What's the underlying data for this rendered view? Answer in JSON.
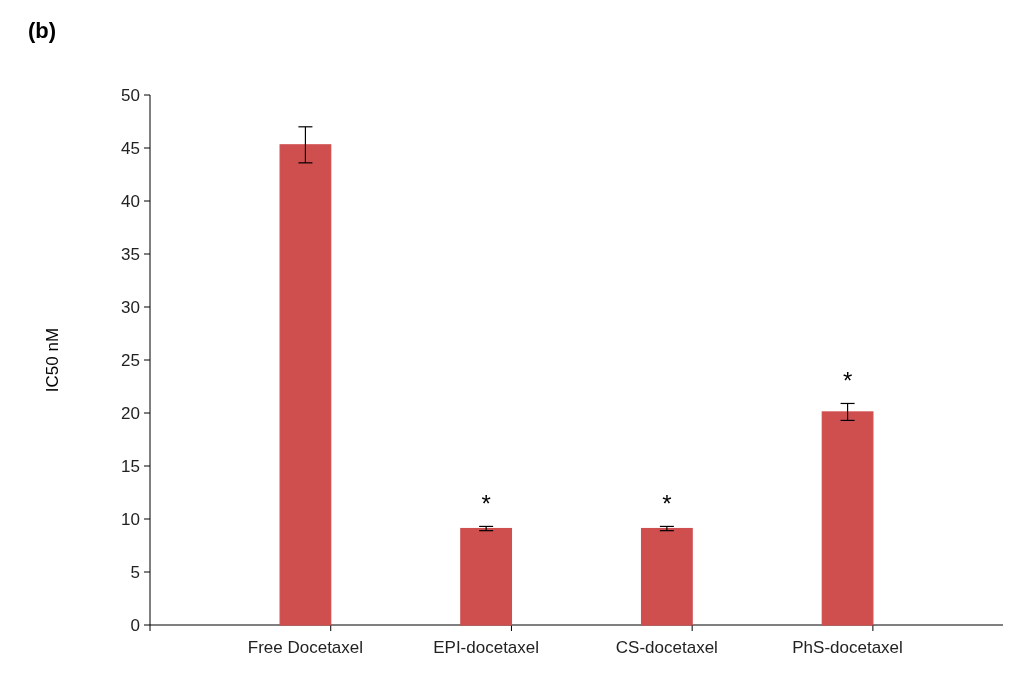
{
  "chart_data": {
    "type": "bar",
    "title": "(b)",
    "ylabel": "IC50 nM",
    "categories": [
      "Free Docetaxel",
      "EPI-docetaxel",
      "CS-docetaxel",
      "PhS-docetaxel"
    ],
    "values": [
      45.3,
      9.1,
      9.1,
      20.1
    ],
    "errors": [
      1.7,
      0.2,
      0.2,
      0.8
    ],
    "color": "#cf4e4e",
    "ylim": [
      0,
      50
    ],
    "yticks": [
      0,
      5,
      10,
      15,
      20,
      25,
      30,
      35,
      40,
      45,
      50
    ],
    "annotations": [
      {
        "text": "*",
        "x": "EPI-docetaxel",
        "y": 9.3
      },
      {
        "text": "*",
        "x": "CS-docetaxel",
        "y": 9.3
      },
      {
        "text": "*",
        "x": "PhS-docetaxel",
        "y": 20.9
      }
    ]
  }
}
